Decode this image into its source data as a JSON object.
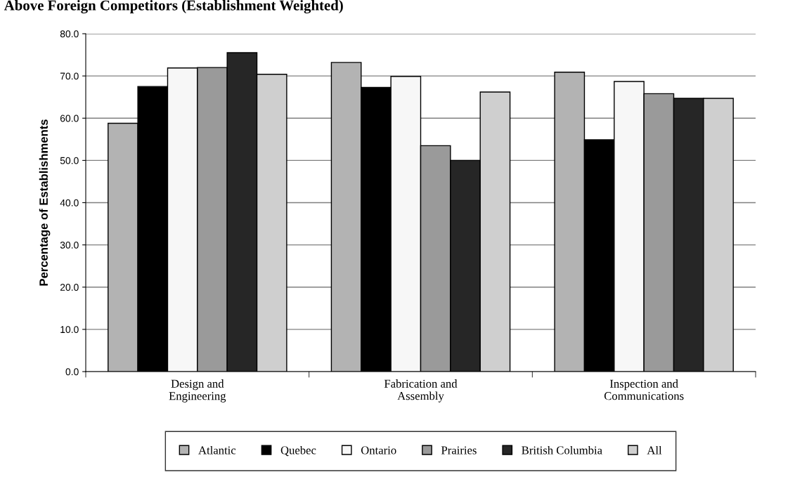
{
  "chart_data": {
    "type": "bar",
    "title": "Above Foreign Competitors (Establishment Weighted)",
    "ylabel": "Percentage of Establishments",
    "categories": [
      "Design and\nEngineering",
      "Fabrication and\nAssembly",
      "Inspection and\nCommunications"
    ],
    "series": [
      {
        "name": "Atlantic",
        "color": "#b3b3b3",
        "values": [
          58.8,
          73.2,
          70.9
        ]
      },
      {
        "name": "Quebec",
        "color": "#000000",
        "values": [
          67.5,
          67.3,
          54.9
        ]
      },
      {
        "name": "Ontario",
        "color": "#f7f7f7",
        "values": [
          71.9,
          69.9,
          68.7
        ]
      },
      {
        "name": "Prairies",
        "color": "#9a9a9a",
        "values": [
          72.0,
          53.5,
          65.8
        ]
      },
      {
        "name": "British Columbia",
        "color": "#262626",
        "values": [
          75.5,
          50.0,
          64.7
        ]
      },
      {
        "name": "All",
        "color": "#cfcfcf",
        "values": [
          70.4,
          66.2,
          64.7
        ]
      }
    ],
    "ylim": [
      0,
      80
    ],
    "yticks": [
      {
        "value": 0,
        "label": "0.0"
      },
      {
        "value": 10,
        "label": "10.0"
      },
      {
        "value": 20,
        "label": "20.0"
      },
      {
        "value": 30,
        "label": "30.0"
      },
      {
        "value": 40,
        "label": "40.0"
      },
      {
        "value": 50,
        "label": "50.0"
      },
      {
        "value": 60,
        "label": "60.0"
      },
      {
        "value": 70,
        "label": "70.0"
      },
      {
        "value": 80,
        "label": "80.0"
      }
    ],
    "grid": "y",
    "legend": "bottom"
  }
}
